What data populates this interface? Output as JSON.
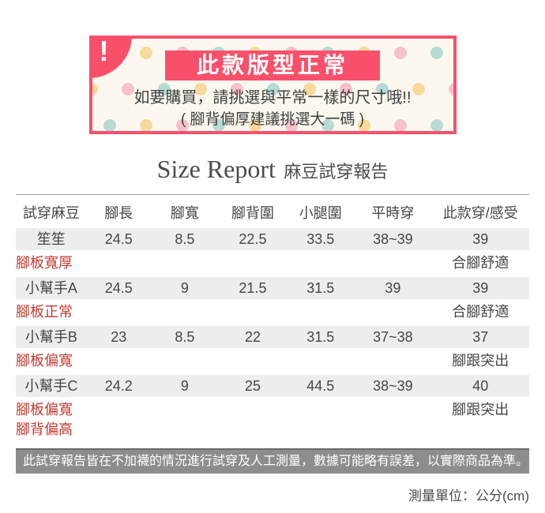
{
  "banner": {
    "badge": "!",
    "title": "此款版型正常",
    "line1": "如要購買，請挑選與平常一樣的尺寸哦!!",
    "line2": "( 腳背偏厚建議挑選大一碼 )"
  },
  "report": {
    "title_en": "Size Report",
    "title_zh": "麻豆試穿報告"
  },
  "table": {
    "headers": [
      "試穿麻豆",
      "腳長",
      "腳寬",
      "腳背圍",
      "小腿圍",
      "平時穿",
      "此款穿/感受"
    ],
    "col_widths_pct": [
      13.8,
      12.5,
      13.2,
      13.3,
      13.1,
      15.1,
      19.0
    ],
    "rows": [
      {
        "model": "笙笙",
        "values": [
          "24.5",
          "8.5",
          "22.5",
          "33.5",
          "38~39",
          "39"
        ],
        "note": [
          "腳板寬厚"
        ],
        "feel": "合腳舒適"
      },
      {
        "model": "小幫手A",
        "values": [
          "24.5",
          "9",
          "21.5",
          "31.5",
          "39",
          "39"
        ],
        "note": [
          "腳板正常"
        ],
        "feel": "合腳舒適"
      },
      {
        "model": "小幫手B",
        "values": [
          "23",
          "8.5",
          "22",
          "31.5",
          "37~38",
          "37"
        ],
        "note": [
          "腳板偏寬"
        ],
        "feel": "腳跟突出"
      },
      {
        "model": "小幫手C",
        "values": [
          "24.2",
          "9",
          "25",
          "44.5",
          "38~39",
          "40"
        ],
        "note": [
          "腳板偏寬",
          "腳背偏高"
        ],
        "feel": "腳跟突出"
      }
    ]
  },
  "footer": {
    "disclaimer": "此試穿報告皆在不加襪的情況進行試穿及人工測量，數據可能略有誤差，以實際商品為準。",
    "unit": "測量單位：公分(cm)"
  },
  "colors": {
    "accent_pink": "#f8506b",
    "note_red": "#c33a31",
    "text_dark": "#454545",
    "row_gray": "#ededed",
    "bar_gray": "#8d8d8d",
    "bar_border": "#6b6b6b",
    "banner_bg": "#fdf8ef",
    "dot_pink": "#f5c1cb",
    "dot_yellow": "#f7d99d",
    "dot_teal": "#b6dbd4"
  }
}
